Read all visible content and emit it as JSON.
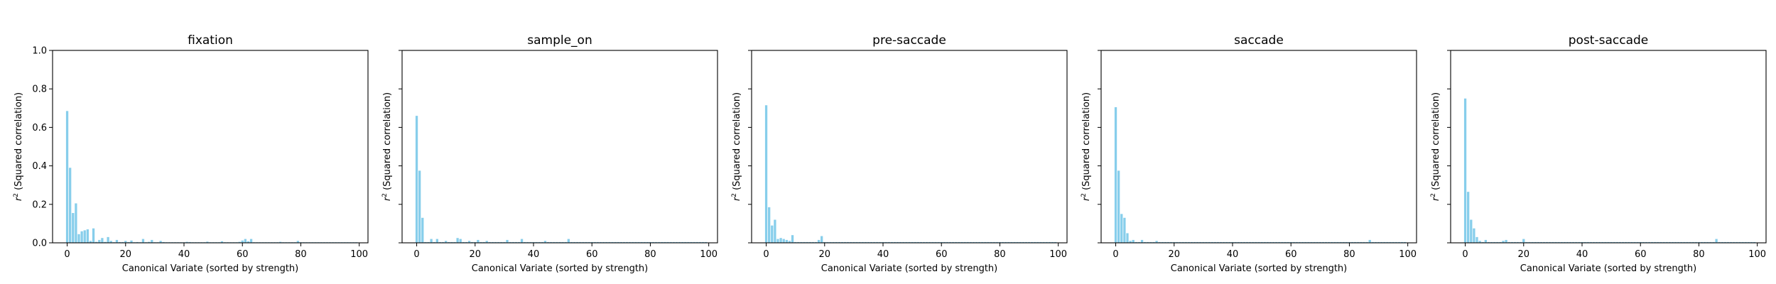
{
  "chart_data": [
    {
      "type": "bar",
      "title": "fixation",
      "xlabel": "Canonical Variate (sorted by strength)",
      "ylabel": "r² (Squared correlation)",
      "xlim": [
        -5,
        103
      ],
      "ylim": [
        0,
        1.0
      ],
      "xticks": [
        0,
        20,
        40,
        60,
        80,
        100
      ],
      "yticks": [
        0.0,
        0.2,
        0.4,
        0.6,
        0.8,
        1.0
      ],
      "color": "#87CEEB",
      "x": [
        0,
        1,
        2,
        3,
        4,
        5,
        6,
        7,
        8,
        9,
        10,
        11,
        12,
        13,
        14,
        15,
        16,
        17,
        18,
        19,
        20,
        21,
        22,
        23,
        24,
        25,
        26,
        27,
        28,
        29,
        30,
        31,
        32,
        33,
        34,
        35,
        36,
        37,
        38,
        39,
        40,
        41,
        42,
        43,
        44,
        45,
        46,
        47,
        48,
        49,
        50,
        51,
        52,
        53,
        54,
        55,
        56,
        57,
        58,
        59,
        60,
        61,
        62,
        63,
        64,
        65,
        66,
        67,
        68,
        69,
        70,
        71,
        72,
        73,
        74,
        75,
        76,
        77,
        78,
        79,
        80,
        81,
        82,
        83,
        84,
        85,
        86,
        87,
        88,
        89,
        90,
        91,
        92,
        93,
        94,
        95,
        96,
        97,
        98,
        99
      ],
      "values": [
        0.685,
        0.39,
        0.155,
        0.205,
        0.045,
        0.06,
        0.065,
        0.07,
        0.01,
        0.075,
        0.005,
        0.015,
        0.025,
        0.005,
        0.03,
        0.01,
        0.003,
        0.015,
        0.004,
        0.004,
        0.01,
        0.004,
        0.012,
        0.003,
        0.004,
        0.003,
        0.02,
        0.003,
        0.005,
        0.015,
        0.003,
        0.003,
        0.01,
        0.004,
        0.003,
        0.003,
        0.003,
        0.003,
        0.003,
        0.003,
        0.003,
        0.005,
        0.004,
        0.003,
        0.003,
        0.003,
        0.003,
        0.003,
        0.006,
        0.003,
        0.003,
        0.003,
        0.003,
        0.008,
        0.003,
        0.003,
        0.003,
        0.003,
        0.003,
        0.005,
        0.012,
        0.02,
        0.008,
        0.02,
        0.003,
        0.003,
        0.003,
        0.003,
        0.003,
        0.003,
        0.003,
        0.003,
        0.003,
        0.005,
        0.003,
        0.003,
        0.003,
        0.003,
        0.003,
        0.01,
        0.003,
        0.003,
        0.003,
        0.003,
        0.003,
        0.003,
        0.003,
        0.003,
        0.003,
        0.003,
        0.003,
        0.003,
        0.003,
        0.003,
        0.003,
        0.003,
        0.003,
        0.003,
        0.003,
        0.003
      ]
    },
    {
      "type": "bar",
      "title": "sample_on",
      "xlabel": "Canonical Variate (sorted by strength)",
      "ylabel": "r² (Squared correlation)",
      "xlim": [
        -5,
        103
      ],
      "ylim": [
        0,
        1.0
      ],
      "xticks": [
        0,
        20,
        40,
        60,
        80,
        100
      ],
      "yticks": [
        0.0,
        0.2,
        0.4,
        0.6,
        0.8,
        1.0
      ],
      "color": "#87CEEB",
      "x": [
        0,
        1,
        2,
        3,
        4,
        5,
        6,
        7,
        8,
        9,
        10,
        11,
        12,
        13,
        14,
        15,
        16,
        17,
        18,
        19,
        20,
        21,
        22,
        23,
        24,
        25,
        26,
        27,
        28,
        29,
        30,
        31,
        32,
        33,
        34,
        35,
        36,
        37,
        38,
        39,
        40,
        41,
        42,
        43,
        44,
        45,
        46,
        47,
        48,
        49,
        50,
        51,
        52,
        53,
        54,
        55,
        56,
        57,
        58,
        59,
        60,
        61,
        62,
        63,
        64,
        65,
        66,
        67,
        68,
        69,
        70,
        71,
        72,
        73,
        74,
        75,
        76,
        77,
        78,
        79,
        80,
        81,
        82,
        83,
        84,
        85,
        86,
        87,
        88,
        89,
        90,
        91,
        92,
        93,
        94,
        95,
        96,
        97,
        98,
        99
      ],
      "values": [
        0.66,
        0.375,
        0.13,
        0.004,
        0.004,
        0.02,
        0.004,
        0.02,
        0.004,
        0.004,
        0.01,
        0.004,
        0.004,
        0.004,
        0.025,
        0.02,
        0.004,
        0.004,
        0.01,
        0.004,
        0.004,
        0.015,
        0.004,
        0.004,
        0.01,
        0.004,
        0.004,
        0.004,
        0.004,
        0.004,
        0.004,
        0.015,
        0.004,
        0.004,
        0.004,
        0.004,
        0.02,
        0.004,
        0.004,
        0.004,
        0.004,
        0.004,
        0.004,
        0.004,
        0.01,
        0.004,
        0.004,
        0.004,
        0.004,
        0.004,
        0.004,
        0.004,
        0.02,
        0.004,
        0.004,
        0.004,
        0.004,
        0.004,
        0.004,
        0.004,
        0.004,
        0.004,
        0.004,
        0.004,
        0.004,
        0.004,
        0.004,
        0.004,
        0.004,
        0.004,
        0.004,
        0.004,
        0.004,
        0.004,
        0.004,
        0.004,
        0.004,
        0.004,
        0.004,
        0.004,
        0.004,
        0.004,
        0.004,
        0.004,
        0.004,
        0.004,
        0.004,
        0.004,
        0.004,
        0.004,
        0.004,
        0.004,
        0.004,
        0.004,
        0.004,
        0.004,
        0.004,
        0.004,
        0.004,
        0.004
      ]
    },
    {
      "type": "bar",
      "title": "pre-saccade",
      "xlabel": "Canonical Variate (sorted by strength)",
      "ylabel": "r² (Squared correlation)",
      "xlim": [
        -5,
        103
      ],
      "ylim": [
        0,
        1.0
      ],
      "xticks": [
        0,
        20,
        40,
        60,
        80,
        100
      ],
      "yticks": [
        0.0,
        0.2,
        0.4,
        0.6,
        0.8,
        1.0
      ],
      "color": "#87CEEB",
      "x": [
        0,
        1,
        2,
        3,
        4,
        5,
        6,
        7,
        8,
        9,
        10,
        11,
        12,
        13,
        14,
        15,
        16,
        17,
        18,
        19,
        20,
        21,
        22,
        23,
        24,
        25,
        26,
        27,
        28,
        29,
        30,
        31,
        32,
        33,
        34,
        35,
        36,
        37,
        38,
        39,
        40,
        41,
        42,
        43,
        44,
        45,
        46,
        47,
        48,
        49,
        50,
        51,
        52,
        53,
        54,
        55,
        56,
        57,
        58,
        59,
        60,
        61,
        62,
        63,
        64,
        65,
        66,
        67,
        68,
        69,
        70,
        71,
        72,
        73,
        74,
        75,
        76,
        77,
        78,
        79,
        80,
        81,
        82,
        83,
        84,
        85,
        86,
        87,
        88,
        89,
        90,
        91,
        92,
        93,
        94,
        95,
        96,
        97,
        98,
        99
      ],
      "values": [
        0.715,
        0.185,
        0.09,
        0.12,
        0.02,
        0.025,
        0.02,
        0.015,
        0.01,
        0.04,
        0.004,
        0.004,
        0.004,
        0.004,
        0.004,
        0.004,
        0.004,
        0.004,
        0.015,
        0.035,
        0.004,
        0.004,
        0.004,
        0.004,
        0.004,
        0.004,
        0.004,
        0.004,
        0.004,
        0.004,
        0.004,
        0.004,
        0.004,
        0.004,
        0.004,
        0.004,
        0.004,
        0.004,
        0.004,
        0.004,
        0.004,
        0.004,
        0.004,
        0.004,
        0.004,
        0.004,
        0.004,
        0.004,
        0.004,
        0.004,
        0.004,
        0.004,
        0.004,
        0.004,
        0.004,
        0.004,
        0.004,
        0.004,
        0.004,
        0.004,
        0.004,
        0.004,
        0.004,
        0.004,
        0.004,
        0.004,
        0.004,
        0.004,
        0.004,
        0.004,
        0.004,
        0.004,
        0.004,
        0.004,
        0.004,
        0.004,
        0.004,
        0.004,
        0.004,
        0.004,
        0.004,
        0.004,
        0.004,
        0.004,
        0.004,
        0.004,
        0.004,
        0.004,
        0.004,
        0.004,
        0.004,
        0.004,
        0.004,
        0.004,
        0.004,
        0.004,
        0.004,
        0.004,
        0.004,
        0.004
      ]
    },
    {
      "type": "bar",
      "title": "saccade",
      "xlabel": "Canonical Variate (sorted by strength)",
      "ylabel": "r² (Squared correlation)",
      "xlim": [
        -5,
        103
      ],
      "ylim": [
        0,
        1.0
      ],
      "xticks": [
        0,
        20,
        40,
        60,
        80,
        100
      ],
      "yticks": [
        0.0,
        0.2,
        0.4,
        0.6,
        0.8,
        1.0
      ],
      "color": "#87CEEB",
      "x": [
        0,
        1,
        2,
        3,
        4,
        5,
        6,
        7,
        8,
        9,
        10,
        11,
        12,
        13,
        14,
        15,
        16,
        17,
        18,
        19,
        20,
        21,
        22,
        23,
        24,
        25,
        26,
        27,
        28,
        29,
        30,
        31,
        32,
        33,
        34,
        35,
        36,
        37,
        38,
        39,
        40,
        41,
        42,
        43,
        44,
        45,
        46,
        47,
        48,
        49,
        50,
        51,
        52,
        53,
        54,
        55,
        56,
        57,
        58,
        59,
        60,
        61,
        62,
        63,
        64,
        65,
        66,
        67,
        68,
        69,
        70,
        71,
        72,
        73,
        74,
        75,
        76,
        77,
        78,
        79,
        80,
        81,
        82,
        83,
        84,
        85,
        86,
        87,
        88,
        89,
        90,
        91,
        92,
        93,
        94,
        95,
        96,
        97,
        98,
        99
      ],
      "values": [
        0.705,
        0.375,
        0.15,
        0.13,
        0.05,
        0.01,
        0.015,
        0.004,
        0.004,
        0.015,
        0.004,
        0.004,
        0.004,
        0.004,
        0.01,
        0.004,
        0.004,
        0.004,
        0.004,
        0.004,
        0.004,
        0.004,
        0.004,
        0.004,
        0.004,
        0.004,
        0.004,
        0.004,
        0.004,
        0.004,
        0.004,
        0.004,
        0.004,
        0.004,
        0.004,
        0.004,
        0.004,
        0.004,
        0.004,
        0.004,
        0.004,
        0.004,
        0.004,
        0.004,
        0.004,
        0.004,
        0.004,
        0.004,
        0.004,
        0.004,
        0.004,
        0.004,
        0.004,
        0.004,
        0.004,
        0.004,
        0.004,
        0.004,
        0.004,
        0.004,
        0.004,
        0.004,
        0.004,
        0.004,
        0.004,
        0.004,
        0.004,
        0.004,
        0.004,
        0.004,
        0.004,
        0.004,
        0.004,
        0.004,
        0.004,
        0.004,
        0.004,
        0.004,
        0.004,
        0.004,
        0.004,
        0.004,
        0.004,
        0.004,
        0.004,
        0.004,
        0.004,
        0.015,
        0.004,
        0.004,
        0.004,
        0.004,
        0.004,
        0.004,
        0.004,
        0.004,
        0.004,
        0.004,
        0.004,
        0.004
      ]
    },
    {
      "type": "bar",
      "title": "post-saccade",
      "xlabel": "Canonical Variate (sorted by strength)",
      "ylabel": "r² (Squared correlation)",
      "xlim": [
        -5,
        103
      ],
      "ylim": [
        0,
        1.0
      ],
      "xticks": [
        0,
        20,
        40,
        60,
        80,
        100
      ],
      "yticks": [
        0.0,
        0.2,
        0.4,
        0.6,
        0.8,
        1.0
      ],
      "color": "#87CEEB",
      "x": [
        0,
        1,
        2,
        3,
        4,
        5,
        6,
        7,
        8,
        9,
        10,
        11,
        12,
        13,
        14,
        15,
        16,
        17,
        18,
        19,
        20,
        21,
        22,
        23,
        24,
        25,
        26,
        27,
        28,
        29,
        30,
        31,
        32,
        33,
        34,
        35,
        36,
        37,
        38,
        39,
        40,
        41,
        42,
        43,
        44,
        45,
        46,
        47,
        48,
        49,
        50,
        51,
        52,
        53,
        54,
        55,
        56,
        57,
        58,
        59,
        60,
        61,
        62,
        63,
        64,
        65,
        66,
        67,
        68,
        69,
        70,
        71,
        72,
        73,
        74,
        75,
        76,
        77,
        78,
        79,
        80,
        81,
        82,
        83,
        84,
        85,
        86,
        87,
        88,
        89,
        90,
        91,
        92,
        93,
        94,
        95,
        96,
        97,
        98,
        99
      ],
      "values": [
        0.75,
        0.265,
        0.12,
        0.075,
        0.03,
        0.01,
        0.004,
        0.015,
        0.004,
        0.004,
        0.004,
        0.004,
        0.004,
        0.01,
        0.015,
        0.004,
        0.004,
        0.004,
        0.004,
        0.004,
        0.02,
        0.004,
        0.004,
        0.004,
        0.004,
        0.004,
        0.004,
        0.004,
        0.004,
        0.004,
        0.004,
        0.004,
        0.004,
        0.004,
        0.004,
        0.004,
        0.004,
        0.004,
        0.004,
        0.004,
        0.004,
        0.004,
        0.004,
        0.004,
        0.004,
        0.004,
        0.004,
        0.004,
        0.004,
        0.004,
        0.004,
        0.004,
        0.004,
        0.004,
        0.004,
        0.004,
        0.004,
        0.004,
        0.004,
        0.004,
        0.004,
        0.004,
        0.004,
        0.004,
        0.004,
        0.004,
        0.004,
        0.004,
        0.004,
        0.004,
        0.004,
        0.004,
        0.004,
        0.004,
        0.004,
        0.004,
        0.004,
        0.004,
        0.004,
        0.004,
        0.004,
        0.004,
        0.004,
        0.004,
        0.004,
        0.004,
        0.02,
        0.004,
        0.004,
        0.004,
        0.004,
        0.004,
        0.004,
        0.004,
        0.004,
        0.004,
        0.004,
        0.004,
        0.004,
        0.004
      ]
    }
  ]
}
